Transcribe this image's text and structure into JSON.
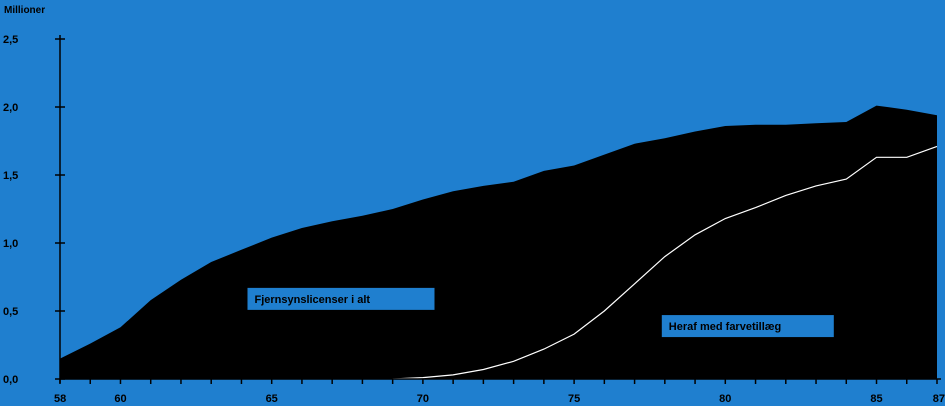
{
  "chart_data": {
    "type": "area",
    "unit_label": "Millioner",
    "ylim": [
      0,
      2.5
    ],
    "y_ticks": [
      {
        "value": 0.0,
        "label": "0,0"
      },
      {
        "value": 0.5,
        "label": "0,5"
      },
      {
        "value": 1.0,
        "label": "1,0"
      },
      {
        "value": 1.5,
        "label": "1,5"
      },
      {
        "value": 2.0,
        "label": "2,0"
      },
      {
        "value": 2.5,
        "label": "2,5"
      }
    ],
    "xlim": [
      1958,
      1987
    ],
    "x_labeled_ticks": [
      {
        "value": 1958,
        "label": "58"
      },
      {
        "value": 1960,
        "label": "60"
      },
      {
        "value": 1965,
        "label": "65"
      },
      {
        "value": 1970,
        "label": "70"
      },
      {
        "value": 1975,
        "label": "75"
      },
      {
        "value": 1980,
        "label": "80"
      },
      {
        "value": 1985,
        "label": "85"
      },
      {
        "value": 1987,
        "label": "87"
      }
    ],
    "series": [
      {
        "name": "Fjernsynslicenser i alt",
        "render": "area",
        "color": "#000000",
        "points": [
          [
            1958,
            0.15
          ],
          [
            1959,
            0.26
          ],
          [
            1960,
            0.38
          ],
          [
            1961,
            0.58
          ],
          [
            1962,
            0.73
          ],
          [
            1963,
            0.86
          ],
          [
            1964,
            0.95
          ],
          [
            1965,
            1.04
          ],
          [
            1966,
            1.11
          ],
          [
            1967,
            1.16
          ],
          [
            1968,
            1.2
          ],
          [
            1969,
            1.25
          ],
          [
            1970,
            1.32
          ],
          [
            1971,
            1.38
          ],
          [
            1972,
            1.42
          ],
          [
            1973,
            1.45
          ],
          [
            1974,
            1.53
          ],
          [
            1975,
            1.57
          ],
          [
            1976,
            1.65
          ],
          [
            1977,
            1.73
          ],
          [
            1978,
            1.77
          ],
          [
            1979,
            1.82
          ],
          [
            1980,
            1.86
          ],
          [
            1981,
            1.87
          ],
          [
            1982,
            1.87
          ],
          [
            1983,
            1.88
          ],
          [
            1984,
            1.89
          ],
          [
            1985,
            2.01
          ],
          [
            1986,
            1.98
          ],
          [
            1987,
            1.94
          ]
        ]
      },
      {
        "name": "Heraf med farvetillæg",
        "render": "line",
        "color": "#ffffff",
        "points": [
          [
            1969,
            0.0
          ],
          [
            1970,
            0.01
          ],
          [
            1971,
            0.03
          ],
          [
            1972,
            0.07
          ],
          [
            1973,
            0.13
          ],
          [
            1974,
            0.22
          ],
          [
            1975,
            0.33
          ],
          [
            1976,
            0.5
          ],
          [
            1977,
            0.7
          ],
          [
            1978,
            0.9
          ],
          [
            1979,
            1.06
          ],
          [
            1980,
            1.18
          ],
          [
            1981,
            1.26
          ],
          [
            1982,
            1.35
          ],
          [
            1983,
            1.42
          ],
          [
            1984,
            1.47
          ],
          [
            1985,
            1.63
          ],
          [
            1986,
            1.63
          ],
          [
            1987,
            1.71
          ]
        ]
      }
    ],
    "annotations": [
      {
        "text": "Fjernsynslicenser i alt",
        "anchor_x": 1964.2,
        "anchor_y": 0.67
      },
      {
        "text": "Heraf med farvetillæg",
        "anchor_x": 1977.9,
        "anchor_y": 0.47,
        "arrow_to": [
          1979.9,
          1.13
        ]
      }
    ],
    "colors": {
      "background": "#1f7fcf",
      "area": "#000000",
      "line": "#ffffff",
      "label_box": "#1f7fcf",
      "axis": "#000000"
    }
  }
}
